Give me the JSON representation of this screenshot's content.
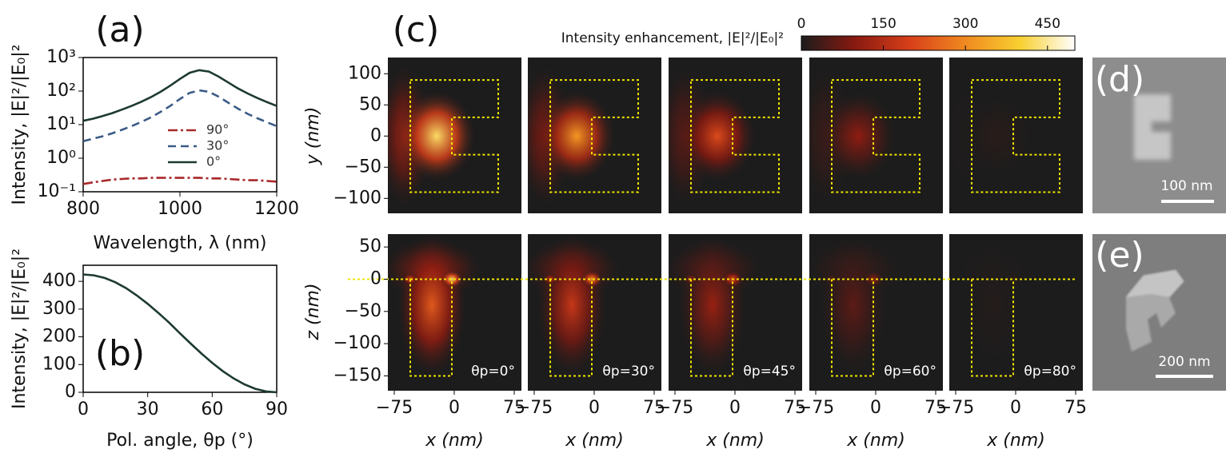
{
  "chart_data": [
    {
      "type": "line",
      "panel_label": "(a)",
      "xlabel": "Wavelength, λ (nm)",
      "ylabel": "Intensity, |E|²/|E₀|²",
      "log_y": true,
      "xlim": [
        800,
        1200
      ],
      "xticks": [
        800,
        1000,
        1200
      ],
      "ylim": [
        0.1,
        1000
      ],
      "yticks": [
        {
          "value": 0.1,
          "label": "10⁻¹"
        },
        {
          "value": 1,
          "label": "10⁰"
        },
        {
          "value": 10,
          "label": "10¹"
        },
        {
          "value": 100,
          "label": "10²"
        },
        {
          "value": 1000,
          "label": "10³"
        }
      ],
      "x": [
        800,
        820,
        840,
        860,
        880,
        900,
        920,
        940,
        960,
        980,
        1000,
        1020,
        1040,
        1060,
        1080,
        1100,
        1120,
        1140,
        1160,
        1180,
        1200
      ],
      "series": [
        {
          "name": "90°",
          "color": "#a8282a",
          "dash": "dashdot",
          "values": [
            0.17,
            0.19,
            0.21,
            0.23,
            0.24,
            0.25,
            0.25,
            0.26,
            0.26,
            0.26,
            0.26,
            0.26,
            0.26,
            0.25,
            0.25,
            0.24,
            0.23,
            0.22,
            0.22,
            0.21,
            0.2
          ]
        },
        {
          "name": "30°",
          "color": "#3b5b86",
          "dash": "dashed",
          "values": [
            3.2,
            3.8,
            4.5,
            5.5,
            7,
            9,
            12,
            16.5,
            24,
            36,
            58,
            88,
            105,
            95,
            68,
            45,
            30,
            21,
            15.5,
            11.8,
            9
          ]
        },
        {
          "name": "0°",
          "color": "#1d3a32",
          "dash": "solid",
          "values": [
            13,
            15,
            18,
            22,
            28,
            36,
            48,
            66,
            95,
            145,
            230,
            350,
            420,
            380,
            270,
            180,
            120,
            85,
            62,
            47,
            36
          ]
        }
      ]
    },
    {
      "type": "line",
      "panel_label": "(b)",
      "xlabel": "Pol. angle, θp (°)",
      "ylabel": "Intensity, |E|²/|E₀|²",
      "xlim": [
        0,
        90
      ],
      "xticks": [
        0,
        30,
        60,
        90
      ],
      "ylim": [
        0,
        458
      ],
      "yticks": [
        0,
        100,
        200,
        300,
        400
      ],
      "x": [
        0,
        5,
        10,
        15,
        20,
        25,
        30,
        35,
        40,
        45,
        50,
        55,
        60,
        65,
        70,
        75,
        80,
        85,
        90
      ],
      "color": "#1d3a32",
      "values": [
        425,
        421.8,
        412.2,
        396.6,
        375.3,
        348.7,
        318.8,
        285.9,
        250.9,
        212.5,
        175.6,
        139.8,
        106.3,
        75.9,
        49.7,
        28.5,
        12.8,
        3.2,
        0
      ]
    },
    {
      "type": "heatmap",
      "panel_label": "(c)",
      "title": "Intensity enhancement, |E|²/|E₀|²",
      "clim": [
        0,
        500
      ],
      "cticks": [
        0,
        150,
        300,
        450
      ],
      "colors": [
        "#1c1c1c",
        "#8a1a10",
        "#d8401a",
        "#f08a20",
        "#f8d030",
        "#ffffff"
      ],
      "xlim": [
        -83,
        84
      ],
      "xticks": [
        {
          "value": -75,
          "label": "−75"
        },
        0,
        75
      ],
      "xlabel": "x (nm)",
      "ylim": [
        -124,
        126
      ],
      "yticks": [
        100,
        50,
        0,
        {
          "value": -50,
          "label": "−50"
        },
        {
          "value": -100,
          "label": "−100"
        }
      ],
      "ylabel": "y (nm)",
      "zlim": [
        -173,
        70
      ],
      "zticks": [
        50,
        0,
        {
          "value": -50,
          "label": "−50"
        },
        {
          "value": -100,
          "label": "−100"
        },
        {
          "value": -150,
          "label": "−150"
        }
      ],
      "zlabel": "z (nm)",
      "outline": {
        "x": [
          -55,
          55,
          55,
          -3,
          -3,
          55,
          55,
          -55,
          -55
        ],
        "y": [
          90,
          90,
          30,
          30,
          -30,
          -30,
          -90,
          -90,
          90
        ]
      },
      "cross_section": {
        "x": [
          -55,
          -55,
          -3,
          -3
        ],
        "z": [
          0,
          -150,
          -150,
          0
        ]
      },
      "panels": [
        {
          "label": "θp=0°",
          "peak": 425
        },
        {
          "label": "θp=30°",
          "peak": 319
        },
        {
          "label": "θp=45°",
          "peak": 213
        },
        {
          "label": "θp=60°",
          "peak": 106
        },
        {
          "label": "θp=80°",
          "peak": 13
        }
      ]
    }
  ],
  "images": [
    {
      "label": "(d)",
      "scale_bar": "100 nm"
    },
    {
      "label": "(e)",
      "scale_bar": "200 nm"
    }
  ]
}
